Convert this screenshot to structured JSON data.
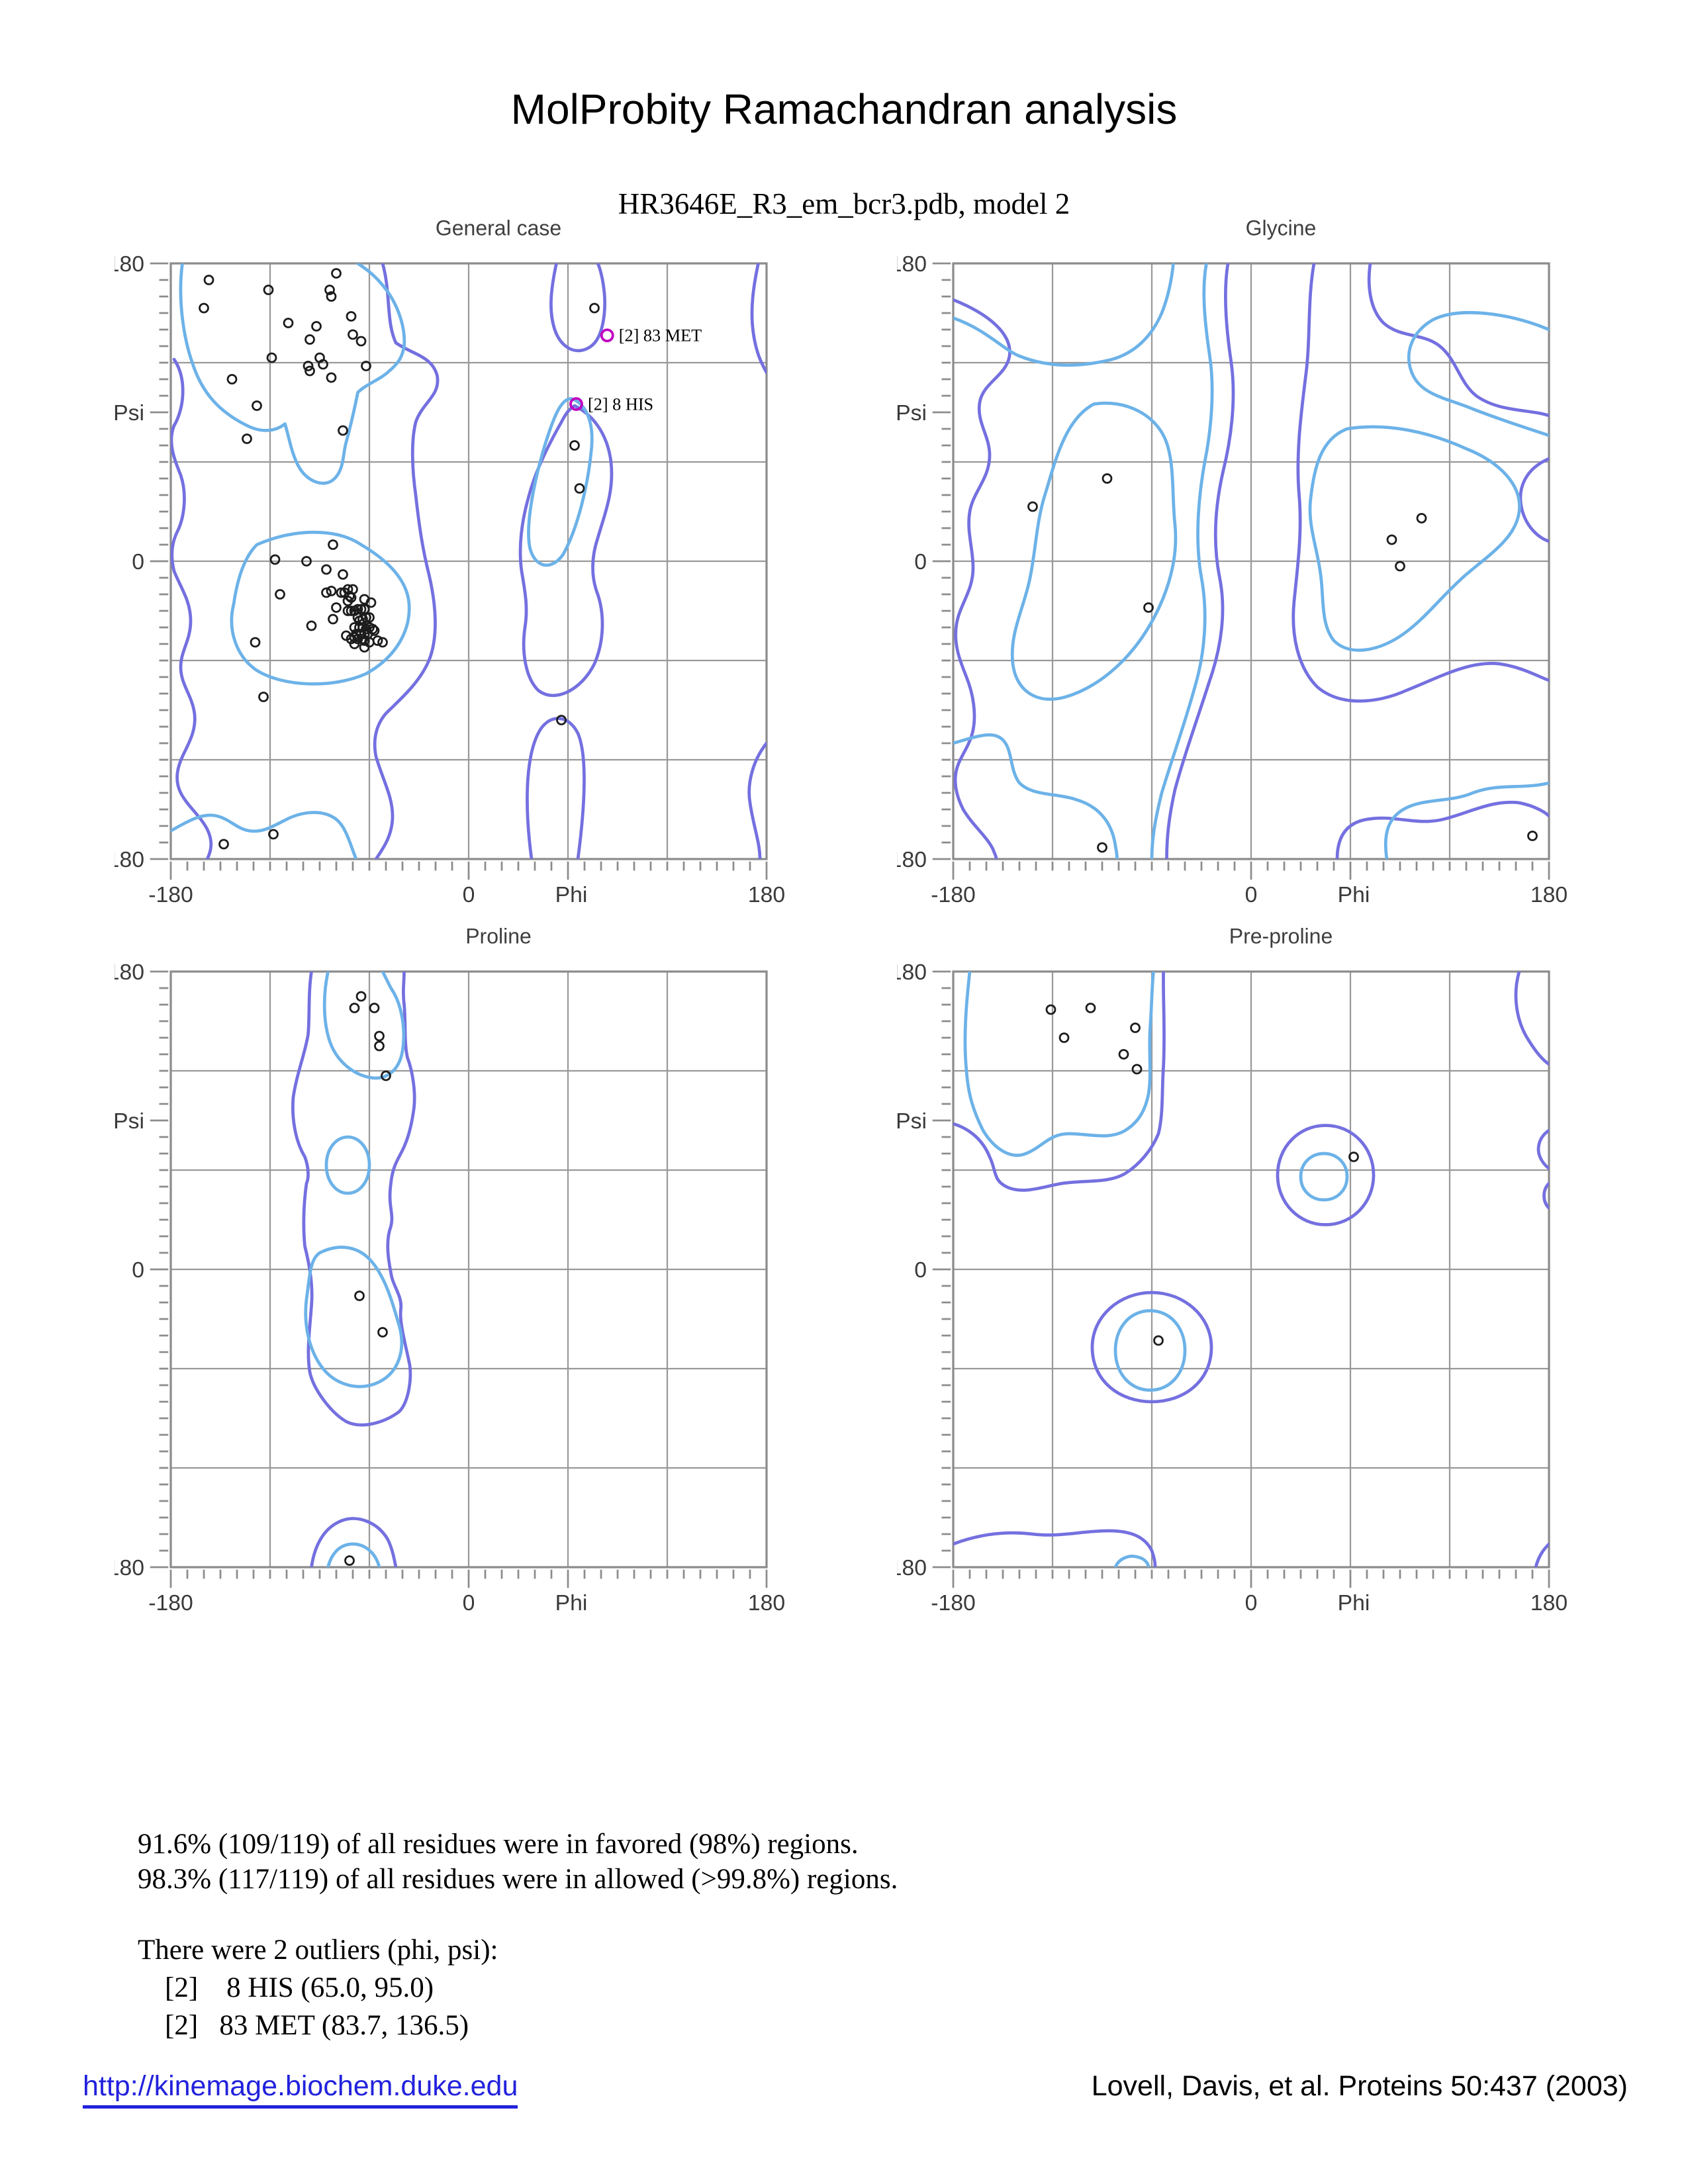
{
  "page": {
    "title": "MolProbity Ramachandran analysis",
    "subtitle": "HR3646E_R3_em_bcr3.pdb, model 2"
  },
  "colors": {
    "favored_contour": "#6cb2e8",
    "allowed_contour": "#7470e0",
    "outlier": "#c000c0",
    "grid": "#999999",
    "border": "#8c8c8c",
    "point": "#1c1c1c",
    "axis_text": "#3a3a3a",
    "link": "#2222dd"
  },
  "chart_data": [
    {
      "type": "scatter",
      "title": "General case",
      "xlabel": "Phi",
      "ylabel": "Psi",
      "xlim": [
        -180,
        180
      ],
      "ylim": [
        -180,
        180
      ],
      "axis_y_labels": [
        "180",
        "Psi",
        "0",
        "-180"
      ],
      "axis_x_labels": [
        "-180",
        "0",
        "Phi",
        "180"
      ],
      "points": [
        [
          -157,
          170
        ],
        [
          -121,
          164
        ],
        [
          -80,
          174
        ],
        [
          -84,
          164
        ],
        [
          -83,
          160
        ],
        [
          -160,
          153
        ],
        [
          -109,
          144
        ],
        [
          -92,
          142
        ],
        [
          -71,
          148
        ],
        [
          -96,
          134
        ],
        [
          -70,
          137
        ],
        [
          -65,
          133
        ],
        [
          -119,
          123
        ],
        [
          -90,
          123
        ],
        [
          -88,
          119
        ],
        [
          -97,
          118
        ],
        [
          -96,
          115
        ],
        [
          -62,
          118
        ],
        [
          -83,
          111
        ],
        [
          -143,
          110
        ],
        [
          -128,
          94
        ],
        [
          -76,
          79
        ],
        [
          -134,
          74
        ],
        [
          76,
          153
        ],
        [
          64,
          70
        ],
        [
          67,
          44
        ],
        [
          56,
          -96
        ],
        [
          -82,
          10
        ],
        [
          -117,
          1
        ],
        [
          -98,
          0
        ],
        [
          -86,
          -5
        ],
        [
          -76,
          -8
        ],
        [
          -114,
          -20
        ],
        [
          -86,
          -19
        ],
        [
          -83,
          -18
        ],
        [
          -77,
          -19
        ],
        [
          -75,
          -19
        ],
        [
          -73,
          -17
        ],
        [
          -70,
          -17
        ],
        [
          -72,
          -21
        ],
        [
          -73,
          -24
        ],
        [
          -71,
          -22
        ],
        [
          -63,
          -23
        ],
        [
          -59,
          -25
        ],
        [
          -80,
          -28
        ],
        [
          -73,
          -30
        ],
        [
          -71,
          -30
        ],
        [
          -69,
          -30
        ],
        [
          -67,
          -29
        ],
        [
          -65,
          -29
        ],
        [
          -63,
          -29
        ],
        [
          -82,
          -35
        ],
        [
          -95,
          -39
        ],
        [
          -67,
          -34
        ],
        [
          -66,
          -36
        ],
        [
          -64,
          -35
        ],
        [
          -62,
          -34
        ],
        [
          -60,
          -34
        ],
        [
          -69,
          -40
        ],
        [
          -66,
          -40
        ],
        [
          -64,
          -40
        ],
        [
          -62,
          -41
        ],
        [
          -60,
          -40
        ],
        [
          -58,
          -41
        ],
        [
          -57,
          -42
        ],
        [
          -68,
          -44
        ],
        [
          -65,
          -44
        ],
        [
          -63,
          -44
        ],
        [
          -61,
          -44
        ],
        [
          -74,
          -45
        ],
        [
          -71,
          -47
        ],
        [
          -69,
          -46
        ],
        [
          -67,
          -47
        ],
        [
          -64,
          -47
        ],
        [
          -63,
          -48
        ],
        [
          -60,
          -49
        ],
        [
          -55,
          -48
        ],
        [
          -52,
          -49
        ],
        [
          -69,
          -50
        ],
        [
          -63,
          -52
        ],
        [
          -129,
          -49
        ],
        [
          -124,
          -82
        ],
        [
          -118,
          -165
        ],
        [
          -148,
          -171
        ]
      ],
      "outliers": [
        {
          "phi": 83.7,
          "psi": 136.5,
          "label": "[2]   83 MET"
        },
        {
          "phi": 65.0,
          "psi": 95.0,
          "label": "[2]    8 HIS"
        }
      ],
      "contours": {
        "favored": [
          "M 7 0 C 4 22 8 46 13 60 C 19 79 30 90 46 98 C 56 103 64 101 69 97 C 71 103 73 116 78 124 C 83 132 93 136 99 130 C 105 124 104 114 106 108 C 109 97 111 88 113 78 C 118 73 127 70 132 65 C 138 60 140 56 141 50 C 142 37 136 22 127 12 C 122 6 116 2 113 0",
          "M 52 170 C 75 160 100 160 115 170 C 132 180 143 192 144 206 C 145 222 136 238 118 248 C 98 257 68 256 52 246 C 40 238 34 222 38 206 C 40 192 44 178 52 170 Z",
          "M 243 82 C 252 86 256 98 254 114 C 252 134 246 160 237 176 C 230 186 220 184 217 172 C 214 158 220 130 226 110 C 231 94 236 80 243 82 Z",
          "M 0 343 C 12 336 20 332 28 334 C 36 336 40 342 48 343 C 56 344 62 340 70 336 C 80 331 92 330 100 336 C 106 341 108 350 112 360"
        ],
        "allowed": [
          "M 128 0 C 133 18 130 35 136 48 C 146 55 158 56 161 68 C 163 80 152 84 148 96 C 145 108 146 126 148 140 C 150 158 152 172 156 188 C 160 205 162 225 156 240 C 150 254 138 264 130 272 C 124 279 122 288 124 298 C 128 312 134 322 134 334 C 134 346 128 354 124 360",
          "M 2 58 C 10 70 8 88 2 98 C -2 108 2 118 6 128 C 10 140 8 154 4 162 C 0 170 0 178 2 186 C 6 196 12 204 12 216 C 12 228 6 234 6 244 C 6 254 12 260 14 270 C 16 280 12 288 8 296 C 4 304 2 312 6 320 C 10 328 18 334 22 342 C 26 350 24 356 22 360",
          "M 233 0 C 230 14 228 28 232 40 C 236 52 246 56 254 50 C 261 45 263 30 262 18 C 261 8 259 2 258 0",
          "M 244 86 C 256 92 264 104 266 120 C 268 138 262 152 258 166 C 254 178 254 190 258 200 C 262 212 262 228 256 242 C 248 258 232 266 222 258 C 214 250 212 234 214 220 C 216 208 214 198 212 186 C 210 172 212 156 216 142 C 220 126 228 110 236 96 C 239 90 241 88 244 86 Z",
          "M 218 360 C 214 330 214 300 222 284 C 228 272 240 272 246 284 C 252 298 250 330 246 360",
          "M 355 0 C 352 14 350 28 352 42 C 354 56 358 62 360 66",
          "M 360 290 C 352 300 348 314 350 326 C 352 340 356 350 356 360"
        ]
      }
    },
    {
      "type": "scatter",
      "title": "Glycine",
      "xlabel": "Phi",
      "ylabel": "Psi",
      "xlim": [
        -180,
        180
      ],
      "ylim": [
        -180,
        180
      ],
      "axis_y_labels": [
        "180",
        "Psi",
        "0",
        "-180"
      ],
      "axis_x_labels": [
        "-180",
        "0",
        "Phi",
        "180"
      ],
      "points": [
        [
          -87,
          50
        ],
        [
          -132,
          33
        ],
        [
          -62,
          -28
        ],
        [
          103,
          26
        ],
        [
          85,
          13
        ],
        [
          90,
          -3
        ],
        [
          -90,
          -173
        ],
        [
          170,
          -166
        ]
      ],
      "outliers": [],
      "contours": {
        "favored": [
          "M 0 33 C 20 40 30 52 40 56 C 60 64 80 62 96 58 C 110 54 120 44 126 30 C 130 20 132 10 133 0",
          "M 153 0 C 150 16 152 36 155 56 C 158 76 156 100 152 120 C 148 142 146 168 150 190 C 154 212 152 236 146 256 C 140 278 132 300 126 320 C 122 336 120 348 120 360",
          "M 85 85 C 105 82 122 92 128 106 C 134 120 132 140 134 158 C 136 178 130 200 118 220 C 106 240 88 256 68 262 C 50 267 38 258 36 242 C 34 224 42 210 46 192 C 50 174 50 156 56 138 C 62 118 68 94 85 85 Z",
          "M 238 100 C 262 96 288 102 310 112 C 330 120 344 134 342 150 C 340 166 324 176 310 188 C 296 200 286 214 272 224 C 258 234 240 238 230 228 C 222 218 224 202 222 188 C 220 172 214 158 216 142 C 218 124 222 106 238 100 Z",
          "M 360 40 C 336 30 306 26 290 34 C 276 42 272 56 278 68 C 284 80 300 82 314 88 C 332 95 348 100 360 104",
          "M 0 290 C 14 286 24 282 30 288 C 36 294 34 306 40 314 C 48 322 62 320 74 324 C 88 328 96 338 98 352 C 99 357 99 359 99 360",
          "M 262 360 C 260 346 262 336 272 330 C 284 323 300 326 314 320 C 330 314 344 318 360 314"
        ],
        "allowed": [
          "M 0 22 C 20 30 36 42 34 56 C 32 68 18 72 16 84 C 14 96 22 104 22 116 C 22 130 12 138 10 150 C 8 162 12 172 12 184 C 12 198 4 206 2 218 C 0 230 4 240 8 250 C 12 260 14 272 12 282 C 10 292 4 298 2 306 C 0 314 2 322 6 330 C 12 340 20 346 24 354 C 25 357 26 358 26 360",
          "M 166 0 C 163 18 165 40 168 60 C 171 82 168 106 163 126 C 158 148 157 170 161 190 C 165 210 162 232 155 252 C 148 274 140 296 134 318 C 130 336 129 348 129 360",
          "M 218 0 C 214 22 216 46 213 68 C 210 92 207 116 209 140 C 211 162 208 184 206 204 C 204 224 208 244 220 256 C 234 268 256 266 274 258 C 294 250 312 240 330 242 C 344 244 354 250 360 252",
          "M 252 0 C 250 14 252 28 260 36 C 270 45 284 42 294 50 C 304 58 306 72 316 80 C 330 90 348 88 360 92",
          "M 360 118 C 346 124 340 136 344 150 C 347 160 354 166 360 168",
          "M 232 360 C 232 346 238 338 250 336 C 266 333 280 340 296 336 C 312 332 326 324 342 326 C 352 328 358 332 360 334"
        ]
      }
    },
    {
      "type": "scatter",
      "title": "Proline",
      "xlabel": "Phi",
      "ylabel": "Psi",
      "xlim": [
        -180,
        180
      ],
      "ylim": [
        -180,
        180
      ],
      "axis_y_labels": [
        "180",
        "Psi",
        "0",
        "-180"
      ],
      "axis_x_labels": [
        "-180",
        "0",
        "Phi",
        "180"
      ],
      "points": [
        [
          -65,
          165
        ],
        [
          -69,
          158
        ],
        [
          -57,
          158
        ],
        [
          -54,
          141
        ],
        [
          -54,
          135
        ],
        [
          -50,
          117
        ],
        [
          -66,
          -16
        ],
        [
          -52,
          -38
        ],
        [
          -72,
          -176
        ]
      ],
      "outliers": [],
      "contours": {
        "favored": [
          "M 95 0 C 92 14 92 30 96 42 C 100 54 110 62 120 64 C 130 66 138 60 140 48 C 142 36 140 20 133 10 C 130 4 129 2 128 0",
          "M 107 100 C 114 100 120 107 120 117 C 120 127 114 134 107 134 C 100 134 94 127 94 117 C 94 107 100 100 107 100 Z",
          "M 90 170 C 102 164 114 166 122 176 C 130 186 134 200 138 214 C 142 228 138 242 126 248 C 114 254 100 250 92 240 C 84 230 80 214 82 198 C 84 184 84 174 90 170 Z",
          "M 95 360 C 97 352 102 346 110 346 C 118 346 124 352 126 360"
        ],
        "allowed": [
          "M 85 0 C 83 13 84 26 83 38 C 81 50 76 62 74 76 C 73 88 75 102 81 112 C 84 120 83 126 82 128 C 80 142 80 156 81 166 C 84 178 86 190 85 202 C 84 216 82 230 84 242 C 86 252 96 266 106 272 C 116 277 130 272 138 266 C 144 260 146 244 144 236 C 142 226 138 212 139 204 C 140 196 134 190 133 182 C 131 172 130 162 133 154 C 135 146 131 142 133 128 C 134 118 137 114 140 108 C 144 100 146 90 147 82 C 148 72 146 60 143 52 C 141 44 142 30 141 20 C 140 12 141 6 141 0",
          "M 85 360 C 87 346 93 336 103 332 C 113 328 125 333 131 343 C 134 349 135 355 136 360"
        ]
      }
    },
    {
      "type": "scatter",
      "title": "Pre-proline",
      "xlabel": "Phi",
      "ylabel": "Psi",
      "xlim": [
        -180,
        180
      ],
      "ylim": [
        -180,
        180
      ],
      "axis_y_labels": [
        "180",
        "Psi",
        "0",
        "-180"
      ],
      "axis_x_labels": [
        "-180",
        "0",
        "Phi",
        "180"
      ],
      "points": [
        [
          -121,
          157
        ],
        [
          -97,
          158
        ],
        [
          -113,
          140
        ],
        [
          -70,
          146
        ],
        [
          -77,
          130
        ],
        [
          -69,
          121
        ],
        [
          62,
          68
        ],
        [
          -56,
          -43
        ]
      ],
      "outliers": [],
      "contours": {
        "favored": [
          "M 10 0 C 8 18 6 40 8 60 C 9 74 12 84 18 96 C 24 106 34 114 44 110 C 54 106 58 98 70 98 C 82 98 94 102 104 96 C 112 91 116 84 118 74 C 120 62 118 48 119 34 C 120 20 120 10 121 0",
          "M 224 110 C 232 110 238 116 238 124 C 238 132 232 138 224 138 C 216 138 210 132 210 124 C 210 116 216 110 224 110 Z",
          "M 119 205 C 131 205 140 215 140 229 C 140 243 131 253 119 253 C 107 253 98 243 98 229 C 98 215 107 205 119 205 Z",
          "M 98 360 C 100 355 106 352 112 354 C 116 355 118 358 118 360"
        ],
        "allowed": [
          "M 0 92 C 10 95 18 102 22 112 C 26 120 24 126 32 130 C 42 135 54 130 66 128 C 80 126 94 128 104 122 C 112 117 120 108 124 98 C 127 86 126 72 127 58 C 128 40 127 20 127 8 L 127 0",
          "M 225 93 C 241 93 254 106 254 123 C 254 140 241 153 225 153 C 209 153 196 140 196 123 C 196 106 209 93 225 93 Z",
          "M 120 194 C 139 194 156 208 156 227 C 156 248 139 260 120 260 C 101 260 84 248 84 227 C 84 208 101 194 120 194 Z",
          "M 0 346 C 16 340 32 338 48 340 C 64 342 78 338 94 338 C 108 338 116 342 120 350 C 122 356 122 358 122 360",
          "M 342 0 C 338 14 340 30 348 42 C 353 50 357 54 360 56",
          "M 360 96 C 354 100 352 107 355 113 C 357 117 360 119 360 119",
          "M 360 128 C 356 132 356 139 360 143",
          "M 352 360 C 354 352 358 348 360 346"
        ]
      }
    }
  ],
  "stats": {
    "line1": "91.6% (109/119) of all residues were in favored (98%) regions.",
    "line2": "98.3% (117/119) of all residues were in allowed (>99.8%) regions.",
    "outlier_header": "There were 2 outliers (phi, psi):",
    "outlier_line1": "[2]    8 HIS (65.0, 95.0)",
    "outlier_line2": "[2]   83 MET (83.7, 136.5)"
  },
  "footer": {
    "link": "http://kinemage.biochem.duke.edu",
    "citation": "Lovell, Davis, et al. Proteins 50:437 (2003)"
  }
}
